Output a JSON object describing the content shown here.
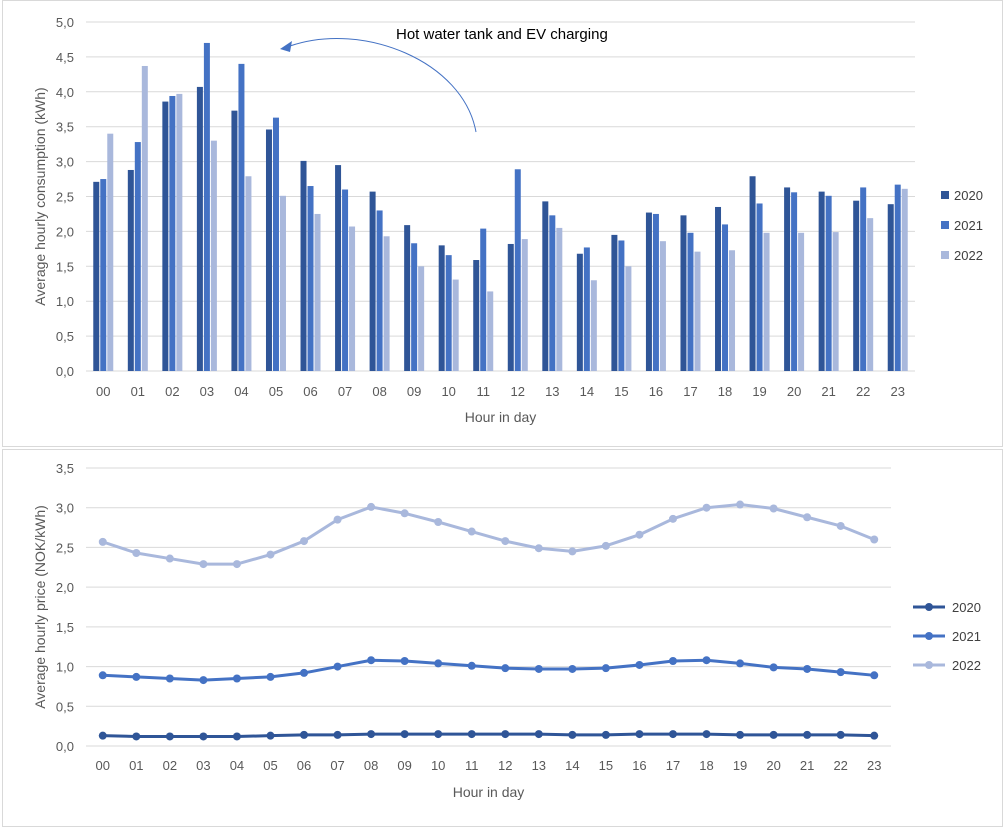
{
  "colors": {
    "2020": "#2f5597",
    "2021": "#4472c4",
    "2022": "#a9b8dc",
    "grid": "#d9d9d9",
    "annotation_arrow": "#4472c4"
  },
  "chart_data": [
    {
      "type": "bar",
      "xlabel": "Hour in day",
      "ylabel": "Average hourly consumption (kWh)",
      "ylim": [
        0,
        5
      ],
      "ytick_step": 0.5,
      "ytick_labels": [
        "0,0",
        "0,5",
        "1,0",
        "1,5",
        "2,0",
        "2,5",
        "3,0",
        "3,5",
        "4,0",
        "4,5",
        "5,0"
      ],
      "categories": [
        "00",
        "01",
        "02",
        "03",
        "04",
        "05",
        "06",
        "07",
        "08",
        "09",
        "10",
        "11",
        "12",
        "13",
        "14",
        "15",
        "16",
        "17",
        "18",
        "19",
        "20",
        "21",
        "22",
        "23"
      ],
      "grid": true,
      "legend_position": "right",
      "annotation": "Hot water tank and EV charging",
      "series": [
        {
          "name": "2020",
          "values": [
            2.71,
            2.88,
            3.86,
            4.07,
            3.73,
            3.46,
            3.01,
            2.95,
            2.57,
            2.09,
            1.8,
            1.59,
            1.82,
            2.43,
            1.68,
            1.95,
            2.27,
            2.23,
            2.35,
            2.79,
            2.63,
            2.57,
            2.44,
            2.39
          ]
        },
        {
          "name": "2021",
          "values": [
            2.75,
            3.28,
            3.94,
            4.7,
            4.4,
            3.63,
            2.65,
            2.6,
            2.3,
            1.83,
            1.66,
            2.04,
            2.89,
            2.23,
            1.77,
            1.87,
            2.25,
            1.98,
            2.1,
            2.4,
            2.56,
            2.51,
            2.63,
            2.67
          ]
        },
        {
          "name": "2022",
          "values": [
            3.4,
            4.37,
            3.97,
            3.3,
            2.79,
            2.51,
            2.25,
            2.07,
            1.93,
            1.5,
            1.31,
            1.14,
            1.89,
            2.05,
            1.3,
            1.5,
            1.86,
            1.71,
            1.73,
            1.98,
            1.98,
            1.99,
            2.19,
            2.61
          ]
        }
      ]
    },
    {
      "type": "line",
      "xlabel": "Hour in day",
      "ylabel": "Average hourly price (NOK/kWh)",
      "ylim": [
        0,
        3.5
      ],
      "ytick_step": 0.5,
      "ytick_labels": [
        "0,0",
        "0,5",
        "1,0",
        "1,5",
        "2,0",
        "2,5",
        "3,0",
        "3,5"
      ],
      "categories": [
        "00",
        "01",
        "02",
        "03",
        "04",
        "05",
        "06",
        "07",
        "08",
        "09",
        "10",
        "11",
        "12",
        "13",
        "14",
        "15",
        "16",
        "17",
        "18",
        "19",
        "20",
        "21",
        "22",
        "23"
      ],
      "grid": true,
      "legend_position": "right",
      "series": [
        {
          "name": "2020",
          "values": [
            0.13,
            0.12,
            0.12,
            0.12,
            0.12,
            0.13,
            0.14,
            0.14,
            0.15,
            0.15,
            0.15,
            0.15,
            0.15,
            0.15,
            0.14,
            0.14,
            0.15,
            0.15,
            0.15,
            0.14,
            0.14,
            0.14,
            0.14,
            0.13
          ]
        },
        {
          "name": "2021",
          "values": [
            0.89,
            0.87,
            0.85,
            0.83,
            0.85,
            0.87,
            0.92,
            1.0,
            1.08,
            1.07,
            1.04,
            1.01,
            0.98,
            0.97,
            0.97,
            0.98,
            1.02,
            1.07,
            1.08,
            1.04,
            0.99,
            0.97,
            0.93,
            0.89
          ]
        },
        {
          "name": "2022",
          "values": [
            2.57,
            2.43,
            2.36,
            2.29,
            2.29,
            2.41,
            2.58,
            2.85,
            3.01,
            2.93,
            2.82,
            2.7,
            2.58,
            2.49,
            2.45,
            2.52,
            2.66,
            2.86,
            3.0,
            3.04,
            2.99,
            2.88,
            2.77,
            2.6
          ]
        }
      ]
    }
  ]
}
